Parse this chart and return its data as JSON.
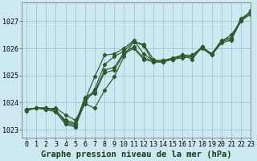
{
  "title": "Graphe pression niveau de la mer (hPa)",
  "background_color": "#cce8f0",
  "grid_color": "#a0c8d8",
  "line_color": "#2d5a2d",
  "marker_color": "#2d5a2d",
  "xlim": [
    -0.5,
    23
  ],
  "ylim": [
    1022.7,
    1027.7
  ],
  "yticks": [
    1023,
    1024,
    1025,
    1026,
    1027
  ],
  "xticks": [
    0,
    1,
    2,
    3,
    4,
    5,
    6,
    7,
    8,
    9,
    10,
    11,
    12,
    13,
    14,
    15,
    16,
    17,
    18,
    19,
    20,
    21,
    22,
    23
  ],
  "line1_x": [
    0,
    1,
    2,
    3,
    4,
    5,
    6,
    7,
    8,
    9,
    10,
    11,
    12,
    13,
    14,
    15,
    16,
    17,
    18,
    19,
    20,
    21,
    22,
    23
  ],
  "line1_y": [
    1023.7,
    1023.8,
    1023.8,
    1023.75,
    1023.25,
    1023.15,
    1024.1,
    1024.95,
    1025.75,
    1025.8,
    1026.0,
    1026.3,
    1025.8,
    1025.55,
    1025.55,
    1025.6,
    1025.65,
    1025.7,
    1026.05,
    1025.75,
    1026.25,
    1026.35,
    1027.0,
    1027.3
  ],
  "line2_x": [
    0,
    1,
    2,
    3,
    4,
    5,
    6,
    7,
    8,
    9,
    10,
    11,
    12,
    13,
    14,
    15,
    16,
    17,
    18,
    19,
    20,
    21,
    22,
    23
  ],
  "line2_y": [
    1023.75,
    1023.8,
    1023.8,
    1023.7,
    1023.3,
    1023.2,
    1024.2,
    1024.4,
    1025.2,
    1025.3,
    1025.85,
    1026.05,
    1025.65,
    1025.55,
    1025.55,
    1025.65,
    1025.75,
    1025.75,
    1026.05,
    1025.8,
    1026.3,
    1026.4,
    1027.1,
    1027.35
  ],
  "line3_x": [
    0,
    1,
    2,
    3,
    4,
    5,
    6,
    7,
    8,
    9,
    10,
    11,
    12,
    13,
    14,
    15,
    16,
    17,
    18,
    19,
    20,
    21,
    22,
    23
  ],
  "line3_y": [
    1023.75,
    1023.8,
    1023.8,
    1023.7,
    1023.35,
    1023.25,
    1024.15,
    1024.35,
    1025.1,
    1025.2,
    1025.8,
    1026.0,
    1025.6,
    1025.5,
    1025.5,
    1025.6,
    1025.7,
    1025.7,
    1026.0,
    1025.75,
    1026.2,
    1026.3,
    1027.05,
    1027.25
  ],
  "line4_x": [
    0,
    1,
    2,
    3,
    4,
    5,
    6,
    7,
    8,
    9,
    10,
    11,
    12,
    13,
    14,
    15,
    16,
    17,
    18,
    19,
    20,
    21,
    22,
    23
  ],
  "line4_y": [
    1023.75,
    1023.8,
    1023.75,
    1023.8,
    1023.55,
    1023.35,
    1023.95,
    1023.8,
    1024.45,
    1024.95,
    1025.7,
    1026.25,
    1026.1,
    1025.5,
    1025.5,
    1025.6,
    1025.75,
    1025.6,
    1026.05,
    1025.8,
    1026.25,
    1026.5,
    1027.0,
    1027.4
  ],
  "spike_x": [
    0,
    1,
    2,
    3,
    4,
    5,
    6,
    7,
    8,
    9,
    10,
    11,
    12,
    13
  ],
  "spike_y": [
    1023.75,
    1023.8,
    1023.75,
    1023.65,
    1023.2,
    1023.1,
    1024.0,
    1024.5,
    1025.4,
    1025.7,
    1025.9,
    1026.25,
    1026.15,
    1025.6
  ],
  "title_fontsize": 7.5,
  "tick_fontsize": 6
}
